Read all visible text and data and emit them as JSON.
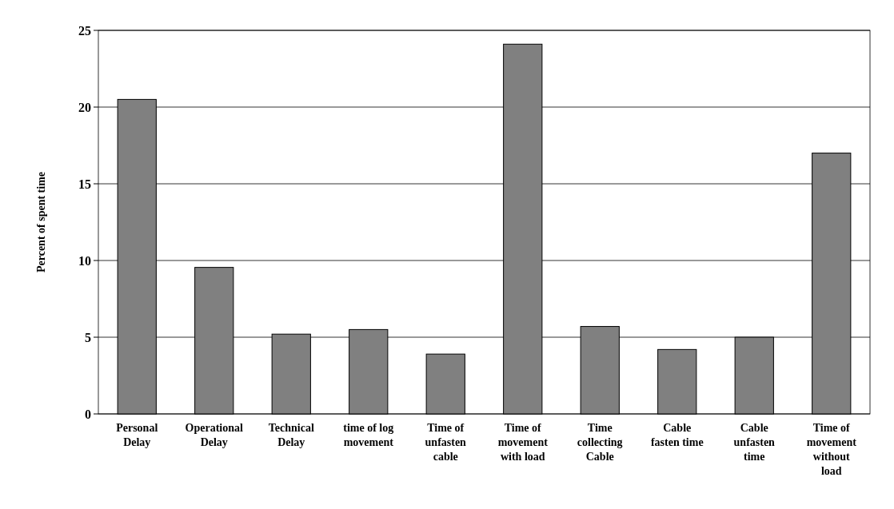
{
  "chart_data": {
    "type": "bar",
    "ylabel": "Percent of spent time",
    "categories": [
      "Personal Delay",
      "Operational Delay",
      "Technical Delay",
      "time of log movement",
      "Time of unfasten cable",
      "Time of movement with load",
      "Time collecting Cable",
      "Cable fasten time",
      "Cable unfasten time",
      "Time of movement without load"
    ],
    "values": [
      20.5,
      9.55,
      5.2,
      5.5,
      3.9,
      24.1,
      5.7,
      4.2,
      5.0,
      17.0
    ],
    "color": "#808080",
    "ylim": [
      0,
      25
    ],
    "yticks": [
      0,
      5,
      10,
      15,
      20,
      25
    ],
    "grid": "y"
  }
}
